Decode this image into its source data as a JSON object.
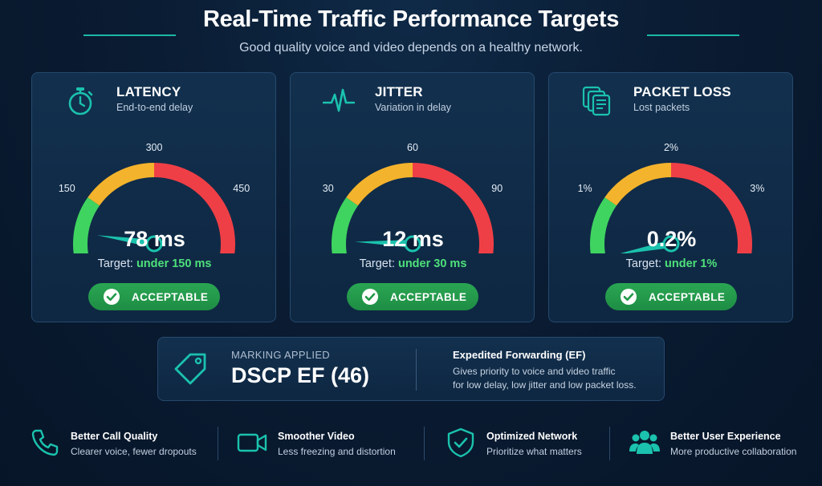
{
  "header": {
    "title": "Real-Time Traffic Performance Targets",
    "subtitle": "Good quality voice and video depends on a healthy network."
  },
  "colors": {
    "accent": "#1bb8a6",
    "green": "#3fd460",
    "yellow": "#f3b32c",
    "red": "#ef3f46",
    "badge_green": "#23994b"
  },
  "metrics": [
    {
      "icon": "stopwatch-icon",
      "title": "LATENCY",
      "subtitle": "End-to-end delay",
      "ticks": [
        "0",
        "150",
        "300",
        "450",
        "600"
      ],
      "max": 600,
      "value": 78,
      "value_text": "78 ms",
      "target_label": "Target:",
      "target_value": "under 150 ms",
      "status": "ACCEPTABLE"
    },
    {
      "icon": "pulse-icon",
      "title": "JITTER",
      "subtitle": "Variation in delay",
      "ticks": [
        "0",
        "30",
        "60",
        "90",
        "120"
      ],
      "max": 120,
      "value": 12,
      "value_text": "12 ms",
      "target_label": "Target:",
      "target_value": "under 30 ms",
      "status": "ACCEPTABLE"
    },
    {
      "icon": "packets-icon",
      "title": "PACKET LOSS",
      "subtitle": "Lost packets",
      "ticks": [
        "0%",
        "1%",
        "2%",
        "3%",
        "5%"
      ],
      "max": 5,
      "value": 0.2,
      "value_text": "0.2%",
      "target_label": "Target:",
      "target_value": "under 1%",
      "status": "ACCEPTABLE"
    }
  ],
  "marking": {
    "icon": "tag-icon",
    "label": "MARKING APPLIED",
    "value": "DSCP EF (46)",
    "heading": "Expedited Forwarding (EF)",
    "desc_line1": "Gives priority to voice and video traffic",
    "desc_line2": "for low delay, low jitter and low packet loss."
  },
  "benefits": [
    {
      "icon": "phone-icon",
      "title": "Better Call Quality",
      "subtitle": "Clearer voice, fewer dropouts"
    },
    {
      "icon": "video-camera-icon",
      "title": "Smoother Video",
      "subtitle": "Less freezing and distortion"
    },
    {
      "icon": "shield-check-icon",
      "title": "Optimized Network",
      "subtitle": "Prioritize what matters"
    },
    {
      "icon": "users-icon",
      "title": "Better User Experience",
      "subtitle": "More productive collaboration"
    }
  ]
}
